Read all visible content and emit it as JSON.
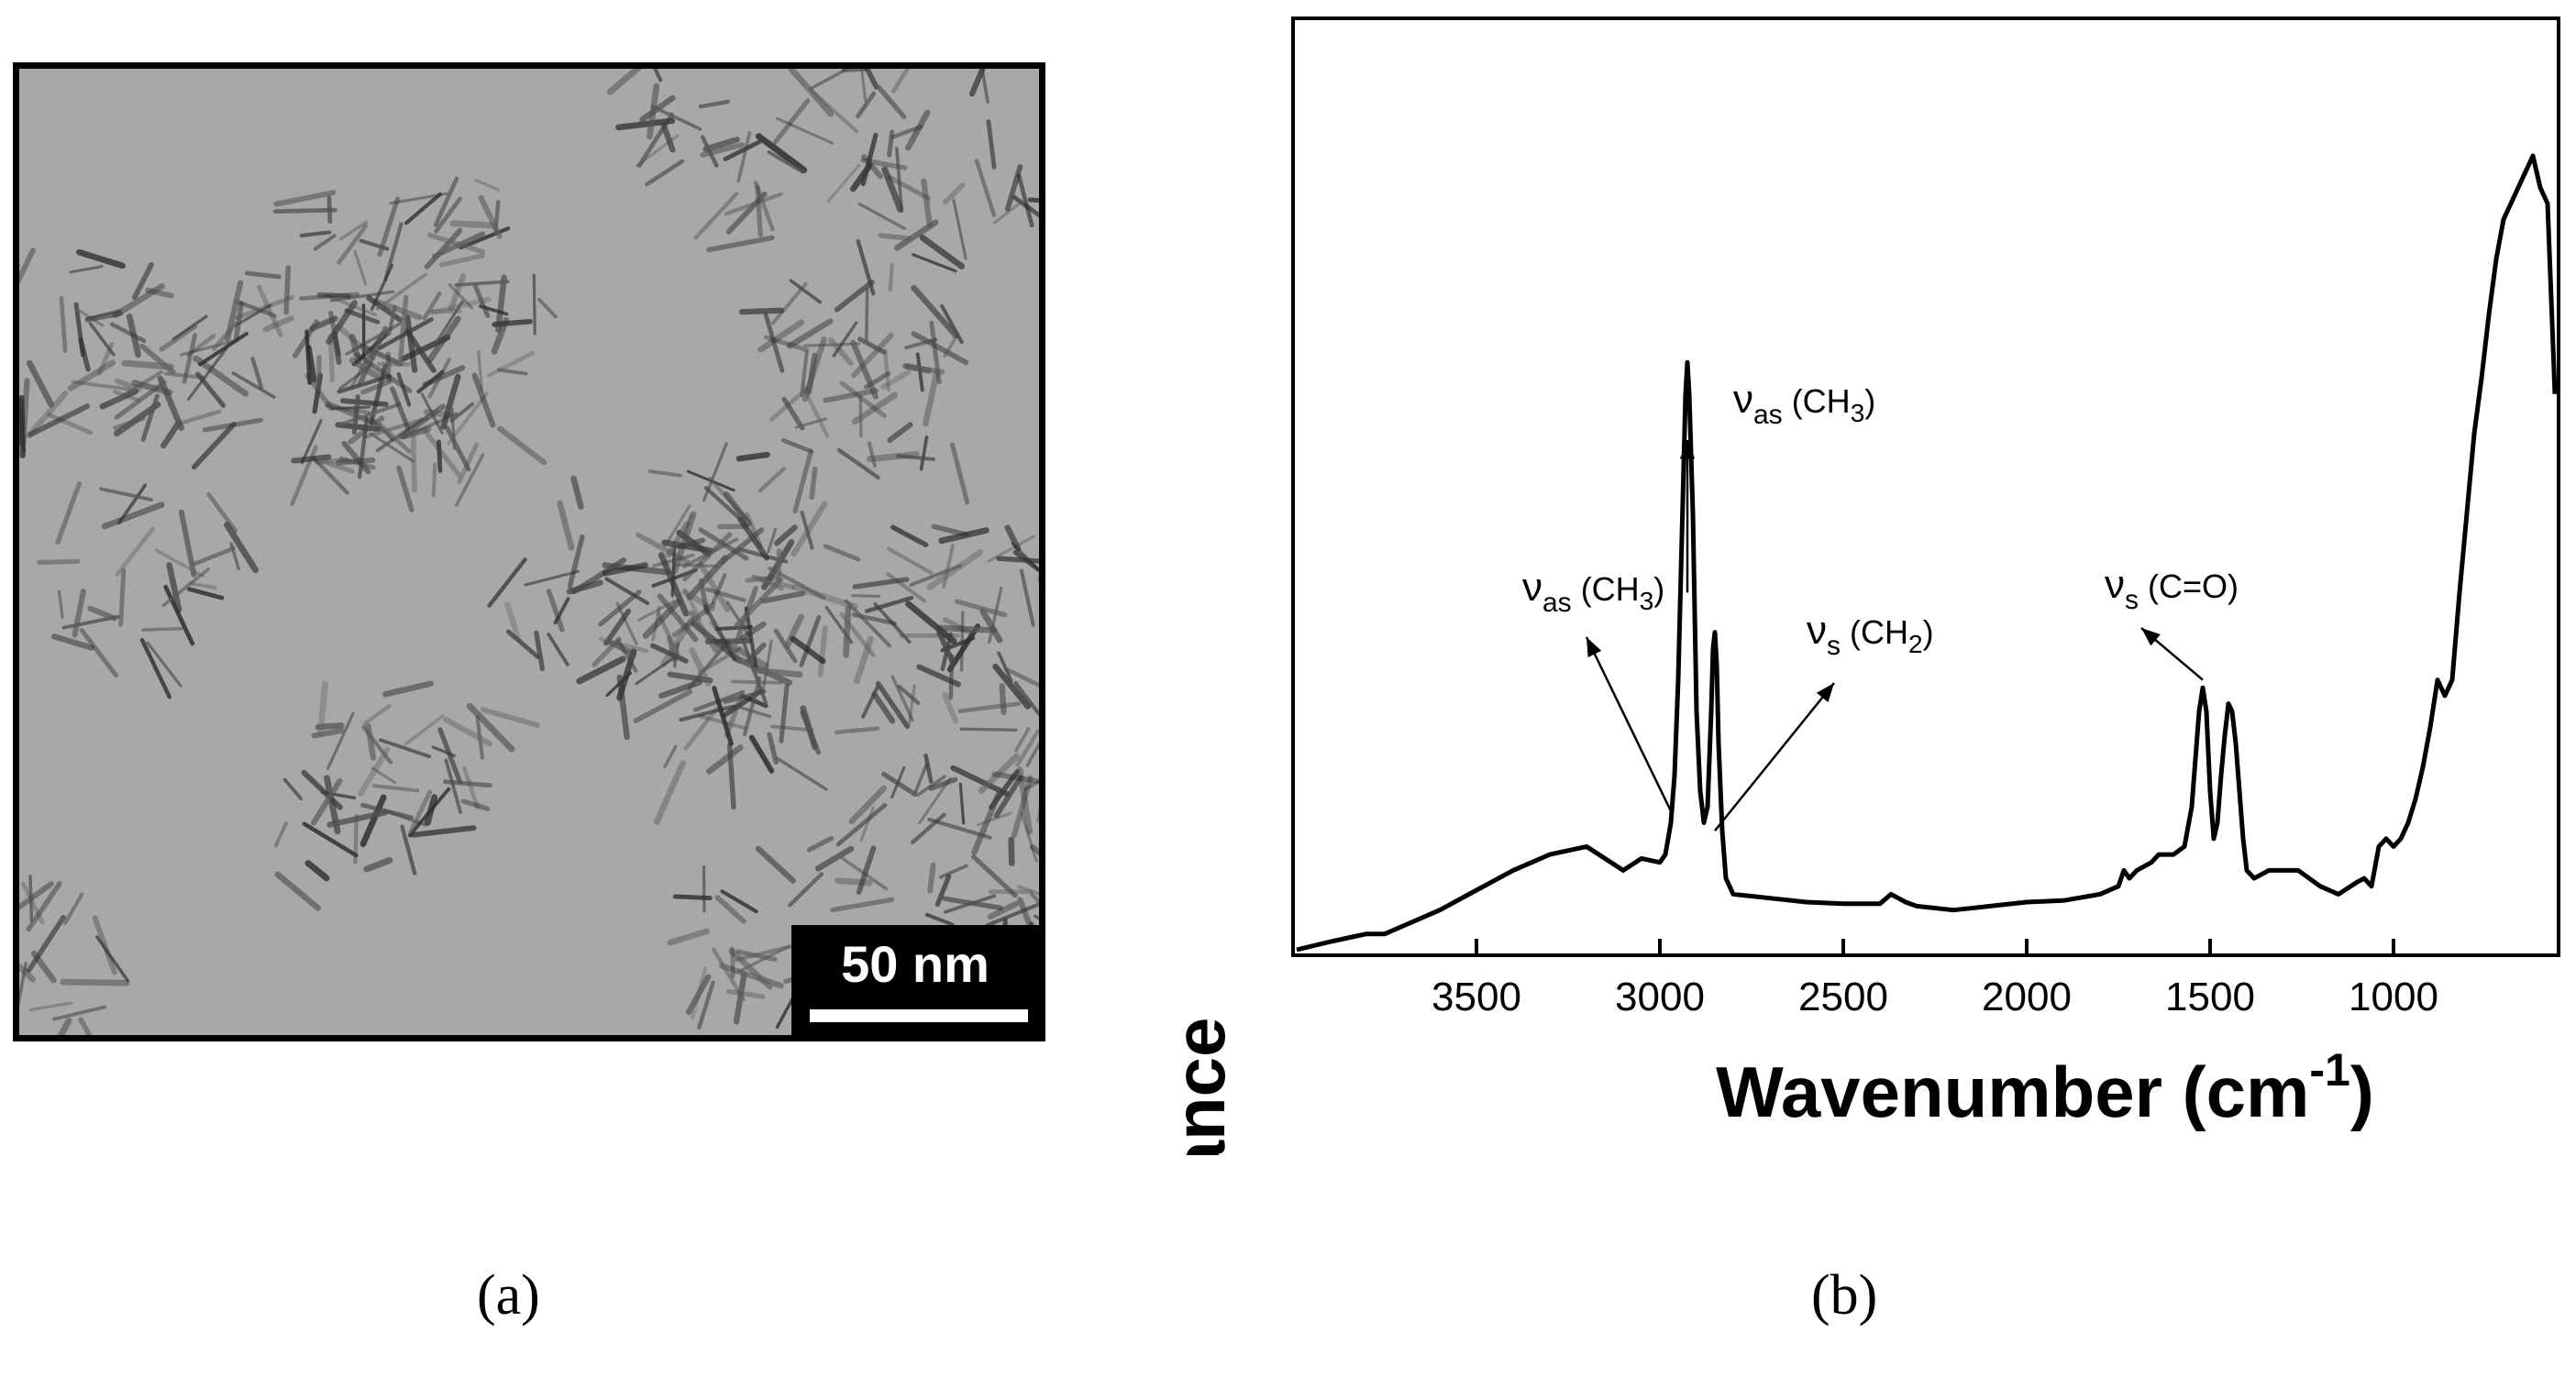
{
  "panels": {
    "a_label": "(a)",
    "b_label": "(b)"
  },
  "tem": {
    "scale_bar_label": "50 nm",
    "scale_bar_length_nm": 50
  },
  "chart_data": {
    "type": "line",
    "title": "",
    "xlabel": "Wavenumber (cm-1)",
    "xlabel_main": "Wavenumber (cm",
    "xlabel_sup": "-1",
    "xlabel_close": ")",
    "ylabel": "Absorbance",
    "xlim": [
      4000,
      550
    ],
    "ylim": [
      0,
      1.0
    ],
    "x_reversed": true,
    "y_ticks_shown": false,
    "grid": false,
    "xticks": [
      3500,
      3000,
      2500,
      2000,
      1500,
      1000
    ],
    "series": [
      {
        "x": [
          3990,
          3900,
          3850,
          3800,
          3750,
          3700,
          3600,
          3500,
          3400,
          3300,
          3200,
          3100,
          3050,
          3000,
          2985,
          2970,
          2960,
          2950,
          2940,
          2930,
          2925,
          2920,
          2910,
          2900,
          2890,
          2880,
          2870,
          2860,
          2855,
          2850,
          2845,
          2840,
          2830,
          2820,
          2800,
          2700,
          2600,
          2500,
          2400,
          2370,
          2350,
          2330,
          2300,
          2200,
          2100,
          2000,
          1900,
          1800,
          1750,
          1735,
          1720,
          1700,
          1660,
          1640,
          1600,
          1570,
          1550,
          1540,
          1530,
          1520,
          1510,
          1500,
          1490,
          1480,
          1470,
          1460,
          1450,
          1440,
          1430,
          1420,
          1410,
          1400,
          1380,
          1340,
          1300,
          1260,
          1200,
          1150,
          1100,
          1080,
          1060,
          1040,
          1020,
          1000,
          980,
          960,
          940,
          920,
          900,
          880,
          860,
          840,
          820,
          800,
          780,
          760,
          740,
          720,
          700,
          680,
          660,
          640,
          620,
          600,
          580,
          560
        ],
        "y": [
          0.0,
          0.01,
          0.015,
          0.02,
          0.02,
          0.03,
          0.05,
          0.075,
          0.1,
          0.12,
          0.13,
          0.1,
          0.115,
          0.11,
          0.12,
          0.16,
          0.22,
          0.34,
          0.52,
          0.7,
          0.74,
          0.7,
          0.55,
          0.3,
          0.2,
          0.16,
          0.18,
          0.3,
          0.38,
          0.4,
          0.36,
          0.26,
          0.15,
          0.09,
          0.07,
          0.065,
          0.06,
          0.058,
          0.058,
          0.07,
          0.065,
          0.06,
          0.055,
          0.05,
          0.055,
          0.06,
          0.062,
          0.07,
          0.08,
          0.1,
          0.09,
          0.1,
          0.11,
          0.12,
          0.12,
          0.13,
          0.18,
          0.24,
          0.3,
          0.33,
          0.3,
          0.2,
          0.14,
          0.16,
          0.22,
          0.27,
          0.31,
          0.3,
          0.26,
          0.2,
          0.14,
          0.1,
          0.09,
          0.1,
          0.1,
          0.1,
          0.08,
          0.07,
          0.085,
          0.09,
          0.08,
          0.13,
          0.14,
          0.13,
          0.14,
          0.16,
          0.19,
          0.23,
          0.28,
          0.34,
          0.32,
          0.34,
          0.45,
          0.55,
          0.65,
          0.72,
          0.8,
          0.87,
          0.92,
          0.94,
          0.96,
          0.98,
          1.0,
          0.96,
          0.94,
          0.7
        ]
      }
    ],
    "annotations": [
      {
        "main": "ν",
        "sub": "as",
        "rest": " (CH",
        "sub2": "3",
        "close": ")",
        "target": [
          2935,
          0.73
        ]
      },
      {
        "main": "ν",
        "sub": "as",
        "rest": " (CH",
        "sub2": "3",
        "close": ")",
        "target": [
          2965,
          0.22
        ]
      },
      {
        "main": "ν",
        "sub": "s",
        "rest": " (CH",
        "sub2": "2",
        "close": ")",
        "target": [
          2855,
          0.18
        ]
      },
      {
        "main": "ν",
        "sub": "s",
        "rest": " (C=O)",
        "sub2": "",
        "close": "",
        "target": [
          1515,
          0.27
        ]
      }
    ]
  }
}
